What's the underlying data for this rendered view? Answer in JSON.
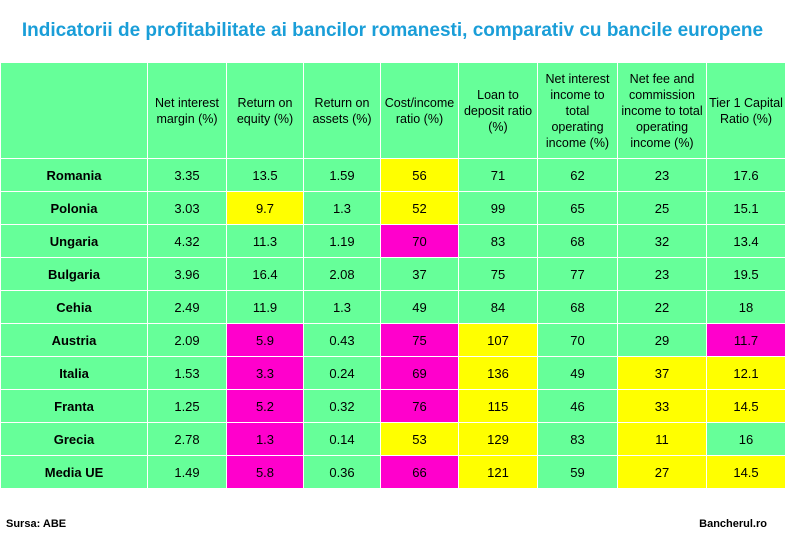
{
  "title": "Indicatorii de profitabilitate ai bancilor romanesti, comparativ cu bancile europene",
  "source": "Sursa: ABE",
  "brand": "Bancherul.ro",
  "colors": {
    "title": "#1a9ed8",
    "cell_background": "#66ff99",
    "highlight_yellow": "#ffff00",
    "highlight_magenta": "#ff00cc"
  },
  "chart_data": {
    "type": "table",
    "title": "Indicatorii de profitabilitate ai bancilor romanesti, comparativ cu bancile europene",
    "columns": [
      "Net interest margin (%)",
      "Return on equity (%)",
      "Return on assets (%)",
      "Cost/income ratio (%)",
      "Loan to deposit ratio (%)",
      "Net interest income to total operating income (%)",
      "Net fee and commission income to total operating income (%)",
      "Tier 1 Capital Ratio (%)"
    ],
    "rows": [
      {
        "label": "Romania",
        "values": [
          "3.35",
          "13.5",
          "1.59",
          "56",
          "71",
          "62",
          "23",
          "17.6"
        ],
        "highlights": [
          "",
          "",
          "",
          "yellow",
          "",
          "",
          "",
          ""
        ]
      },
      {
        "label": "Polonia",
        "values": [
          "3.03",
          "9.7",
          "1.3",
          "52",
          "99",
          "65",
          "25",
          "15.1"
        ],
        "highlights": [
          "",
          "yellow",
          "",
          "yellow",
          "",
          "",
          "",
          ""
        ]
      },
      {
        "label": "Ungaria",
        "values": [
          "4.32",
          "11.3",
          "1.19",
          "70",
          "83",
          "68",
          "32",
          "13.4"
        ],
        "highlights": [
          "",
          "",
          "",
          "magenta",
          "",
          "",
          "",
          ""
        ]
      },
      {
        "label": "Bulgaria",
        "values": [
          "3.96",
          "16.4",
          "2.08",
          "37",
          "75",
          "77",
          "23",
          "19.5"
        ],
        "highlights": [
          "",
          "",
          "",
          "",
          "",
          "",
          "",
          ""
        ]
      },
      {
        "label": "Cehia",
        "values": [
          "2.49",
          "11.9",
          "1.3",
          "49",
          "84",
          "68",
          "22",
          "18"
        ],
        "highlights": [
          "",
          "",
          "",
          "",
          "",
          "",
          "",
          ""
        ]
      },
      {
        "label": "Austria",
        "values": [
          "2.09",
          "5.9",
          "0.43",
          "75",
          "107",
          "70",
          "29",
          "11.7"
        ],
        "highlights": [
          "",
          "magenta",
          "",
          "magenta",
          "yellow",
          "",
          "",
          "magenta"
        ]
      },
      {
        "label": "Italia",
        "values": [
          "1.53",
          "3.3",
          "0.24",
          "69",
          "136",
          "49",
          "37",
          "12.1"
        ],
        "highlights": [
          "",
          "magenta",
          "",
          "magenta",
          "yellow",
          "",
          "yellow",
          "yellow"
        ]
      },
      {
        "label": "Franta",
        "values": [
          "1.25",
          "5.2",
          "0.32",
          "76",
          "115",
          "46",
          "33",
          "14.5"
        ],
        "highlights": [
          "",
          "magenta",
          "",
          "magenta",
          "yellow",
          "",
          "yellow",
          "yellow"
        ]
      },
      {
        "label": "Grecia",
        "values": [
          "2.78",
          "1.3",
          "0.14",
          "53",
          "129",
          "83",
          "11",
          "16"
        ],
        "highlights": [
          "",
          "magenta",
          "",
          "yellow",
          "yellow",
          "",
          "yellow",
          ""
        ]
      },
      {
        "label": "Media UE",
        "values": [
          "1.49",
          "5.8",
          "0.36",
          "66",
          "121",
          "59",
          "27",
          "14.5"
        ],
        "highlights": [
          "",
          "magenta",
          "",
          "magenta",
          "yellow",
          "",
          "yellow",
          "yellow"
        ]
      }
    ]
  }
}
